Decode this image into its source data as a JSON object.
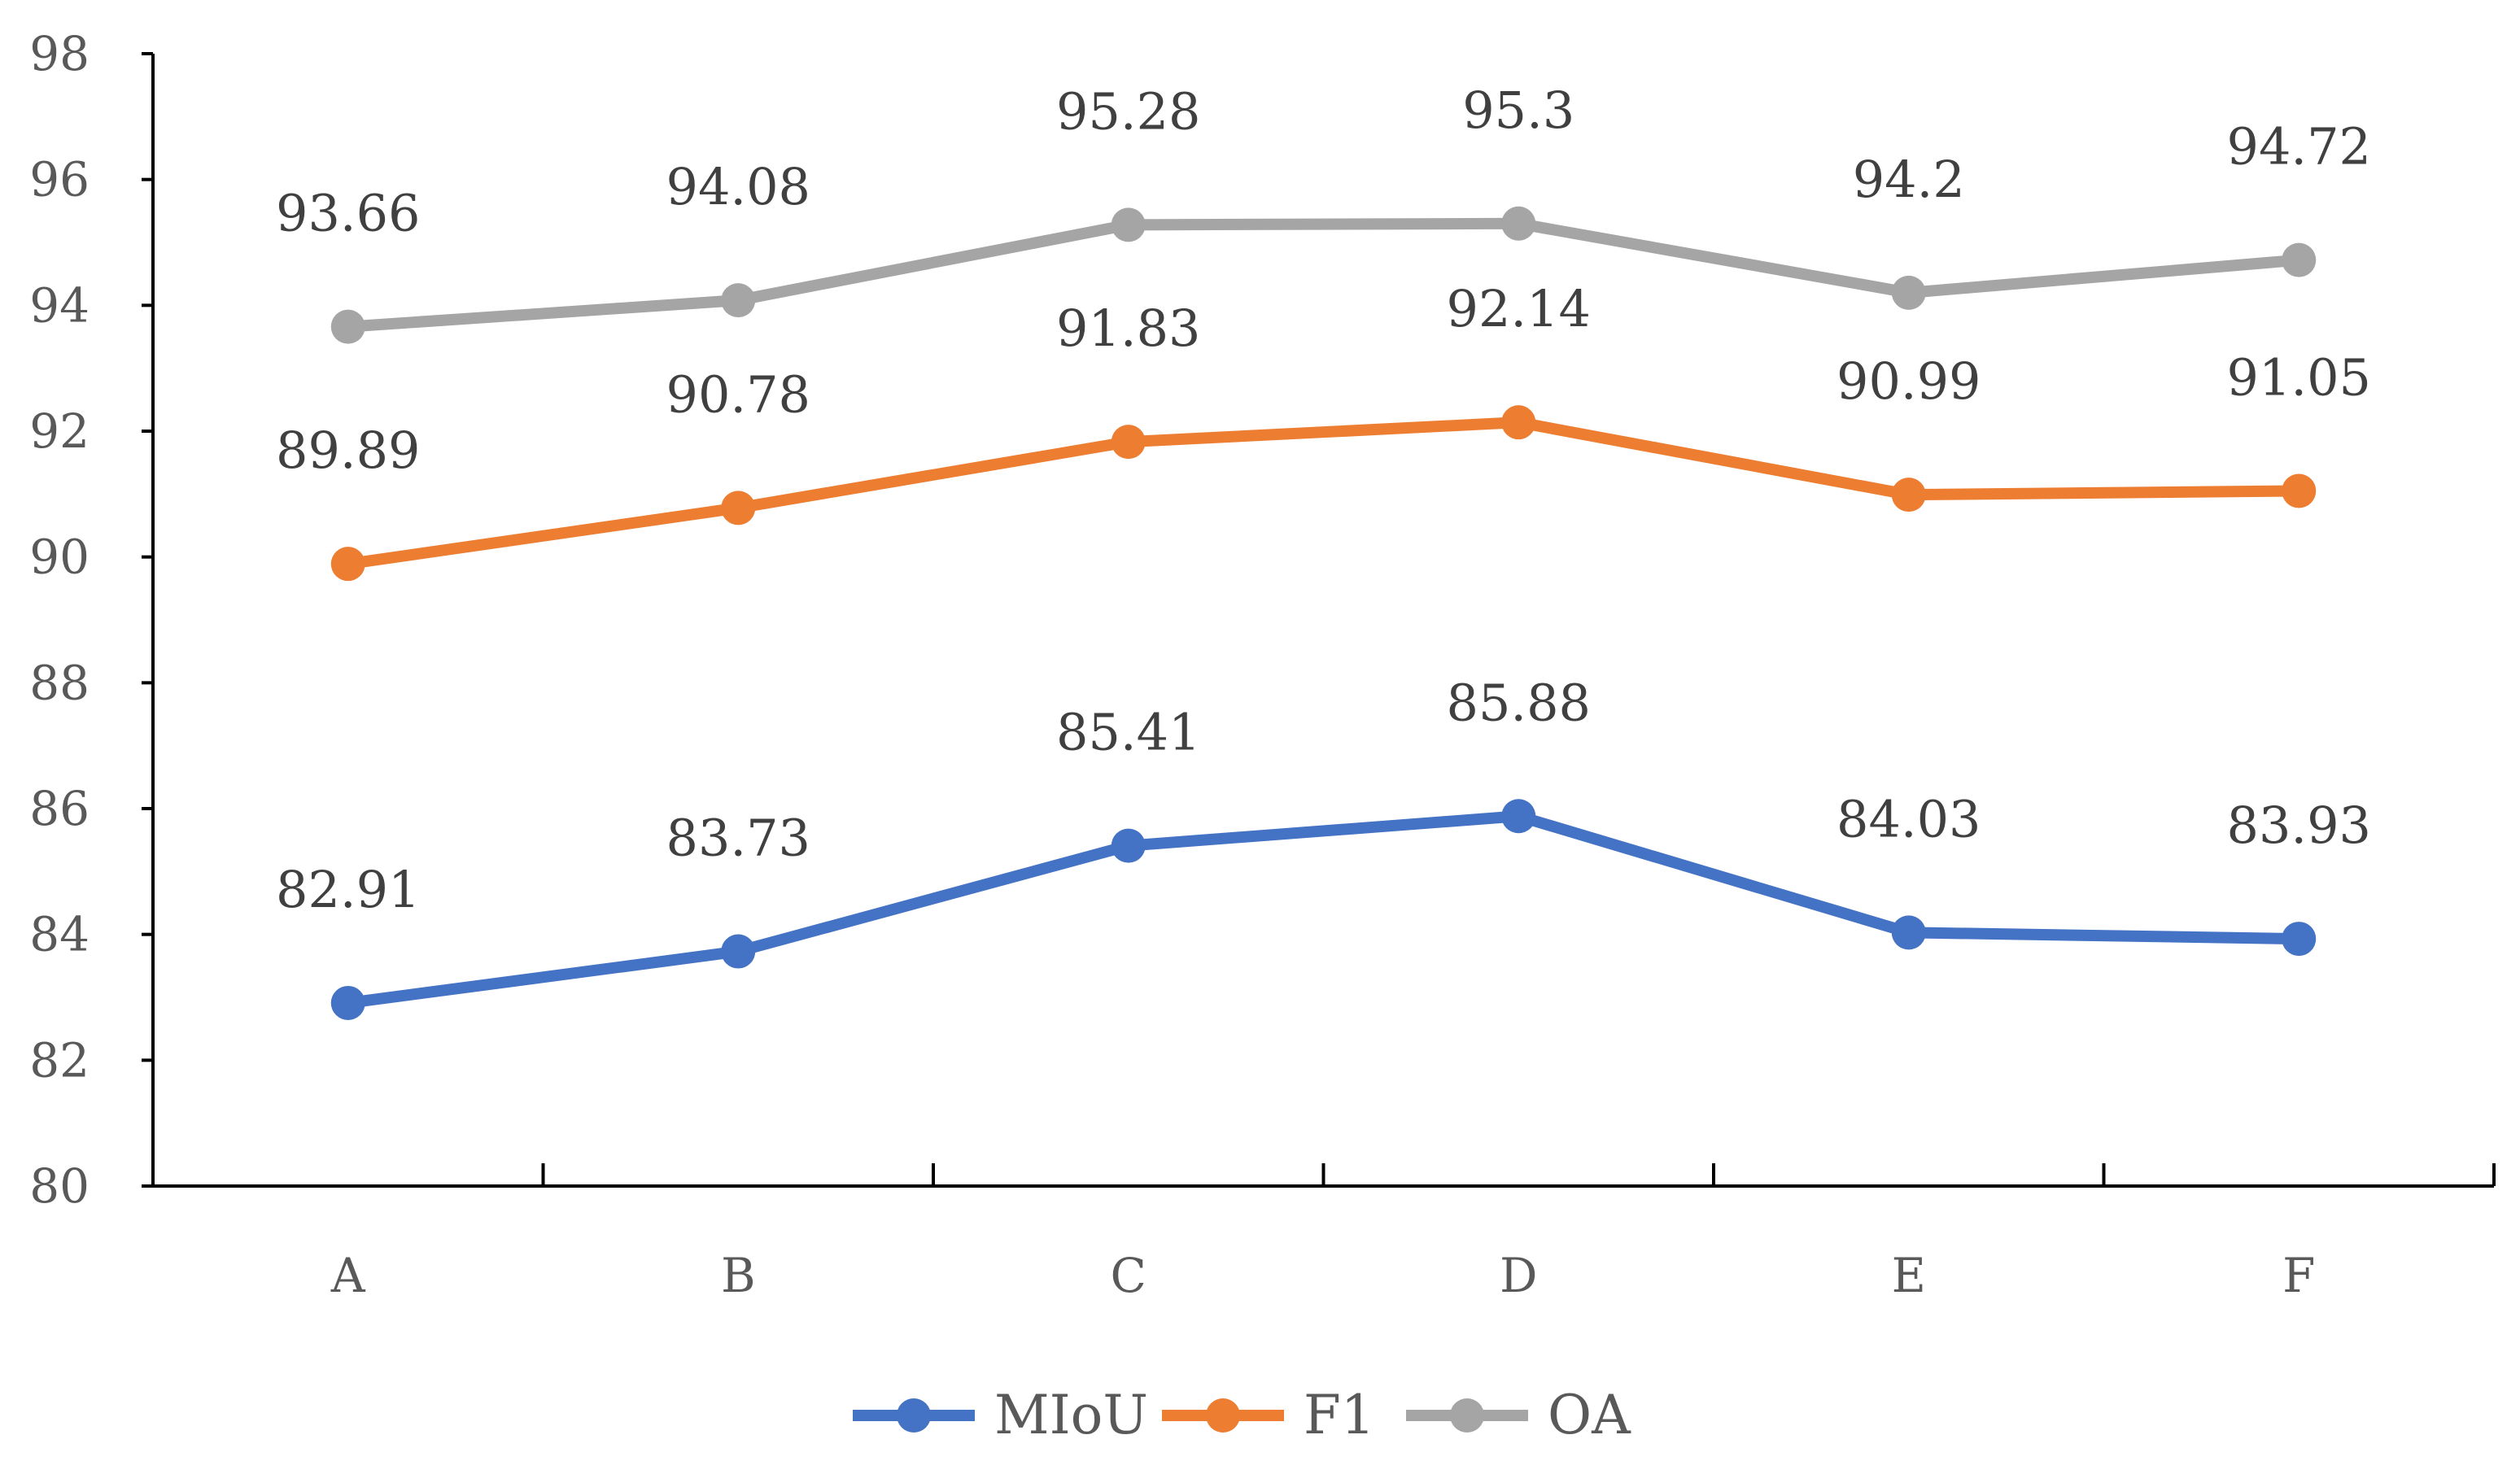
{
  "chart_data": {
    "type": "line",
    "title": "",
    "xlabel": "",
    "ylabel": "",
    "categories": [
      "A",
      "B",
      "C",
      "D",
      "E",
      "F"
    ],
    "ylim": [
      80,
      98
    ],
    "yticks": [
      80,
      82,
      84,
      86,
      88,
      90,
      92,
      94,
      96,
      98
    ],
    "grid": false,
    "legend_position": "bottom",
    "series": [
      {
        "name": "MIoU",
        "color": "#4472C4",
        "values": [
          82.91,
          83.73,
          85.41,
          85.88,
          84.03,
          83.93
        ],
        "labels": [
          "82.91",
          "83.73",
          "85.41",
          "85.88",
          "84.03",
          "83.93"
        ]
      },
      {
        "name": "F1",
        "color": "#ED7D31",
        "values": [
          89.89,
          90.78,
          91.83,
          92.14,
          90.99,
          91.05
        ],
        "labels": [
          "89.89",
          "90.78",
          "91.83",
          "92.14",
          "90.99",
          "91.05"
        ]
      },
      {
        "name": "OA",
        "color": "#A5A5A5",
        "values": [
          93.66,
          94.08,
          95.28,
          95.3,
          94.2,
          94.72
        ],
        "labels": [
          "93.66",
          "94.08",
          "95.28",
          "95.3",
          "94.2",
          "94.72"
        ]
      }
    ]
  }
}
